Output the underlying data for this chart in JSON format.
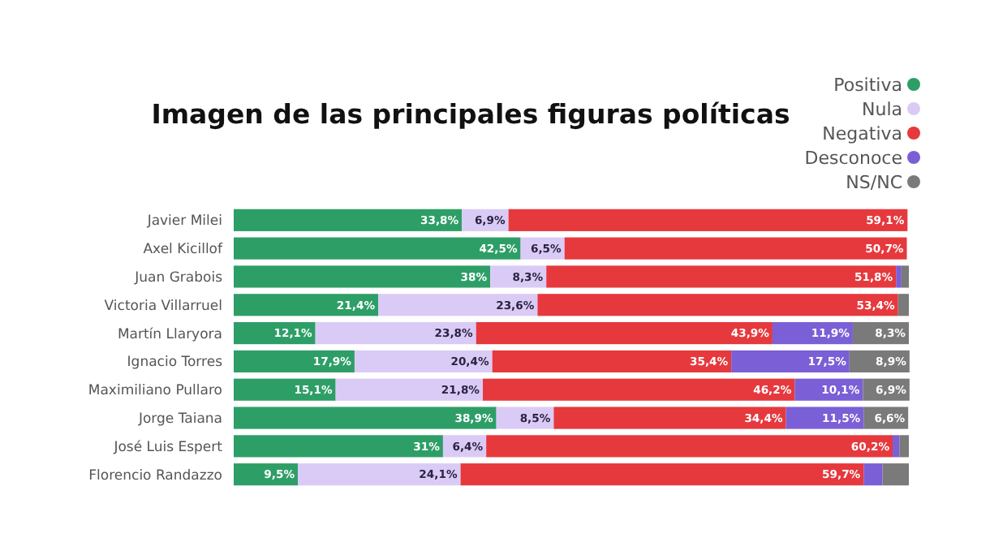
{
  "chart_data": {
    "type": "bar",
    "orientation": "horizontal",
    "stacked": true,
    "title": "Imagen de las principales figuras políticas",
    "categories": [
      "Javier Milei",
      "Axel Kicillof",
      "Juan Grabois",
      "Victoria Villarruel",
      "Martín Llaryora",
      "Ignacio Torres",
      "Maximiliano Pullaro",
      "Jorge Taiana",
      "José Luis Espert",
      "Florencio Randazzo"
    ],
    "xlim": [
      0,
      100
    ],
    "legend": "top right",
    "series": [
      {
        "name": "Positiva",
        "color": "#2e9e67",
        "values": [
          33.8,
          42.5,
          38,
          21.4,
          12.1,
          17.9,
          15.1,
          38.9,
          31,
          9.5
        ],
        "value_labels": [
          "33,8%",
          "42,5%",
          "38%",
          "21,4%",
          "12,1%",
          "17,9%",
          "15,1%",
          "38,9%",
          "31%",
          "9,5%"
        ]
      },
      {
        "name": "Nula",
        "color": "#dacbf6",
        "values": [
          6.9,
          6.5,
          8.3,
          23.6,
          23.8,
          20.4,
          21.8,
          8.5,
          6.4,
          24.1
        ],
        "value_labels": [
          "6,9%",
          "6,5%",
          "8,3%",
          "23,6%",
          "23,8%",
          "20,4%",
          "21,8%",
          "8,5%",
          "6,4%",
          "24,1%"
        ]
      },
      {
        "name": "Negativa",
        "color": "#e6393d",
        "values": [
          59.1,
          50.7,
          51.8,
          53.4,
          43.9,
          35.4,
          46.2,
          34.4,
          60.2,
          59.7
        ],
        "value_labels": [
          "59,1%",
          "50,7%",
          "51,8%",
          "53,4%",
          "43,9%",
          "35,4%",
          "46,2%",
          "34,4%",
          "60,2%",
          "59,7%"
        ]
      },
      {
        "name": "Desconoce",
        "color": "#7b5fd6",
        "values": [
          null,
          null,
          0.8,
          null,
          11.9,
          17.5,
          10.1,
          11.5,
          1.0,
          2.8
        ],
        "value_labels": [
          null,
          null,
          null,
          null,
          "11,9%",
          "17,5%",
          "10,1%",
          "11,5%",
          null,
          null
        ]
      },
      {
        "name": "NS/NC",
        "color": "#7a7a7a",
        "values": [
          null,
          null,
          1.1,
          1.6,
          8.3,
          8.9,
          6.9,
          6.6,
          1.4,
          3.9
        ],
        "value_labels": [
          null,
          null,
          null,
          null,
          "8,3%",
          "8,9%",
          "6,9%",
          "6,6%",
          null,
          null
        ]
      }
    ]
  }
}
